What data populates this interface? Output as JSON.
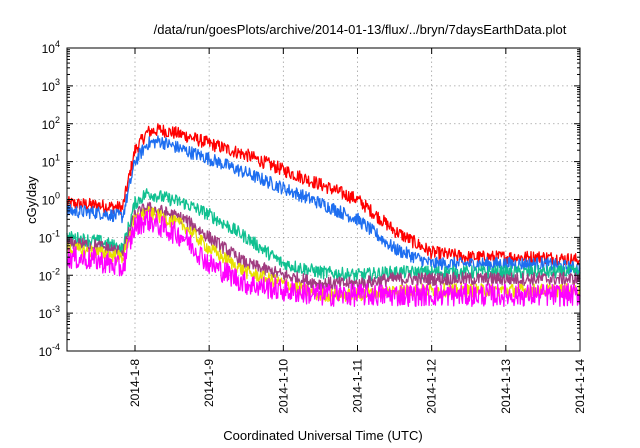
{
  "chart_data": {
    "type": "line",
    "title": "/data/run/goesPlots/archive/2014-01-13/flux/../bryn/7daysEarthData.plot",
    "xlabel": "Coordinated Universal Time (UTC)",
    "ylabel": "cGy/day",
    "yscale": "log",
    "ylim": [
      0.0001,
      10000
    ],
    "xlim": [
      "2014-01-07T02:00",
      "2014-01-14T00:00"
    ],
    "grid": true,
    "legend": "none",
    "x_ticks": [
      "2014-1-8",
      "2014-1-9",
      "2014-1-10",
      "2014-1-11",
      "2014-1-12",
      "2014-1-13",
      "2014-1-14"
    ],
    "y_ticks": [
      {
        "value": 0.0001,
        "base": "10",
        "exp": "-4"
      },
      {
        "value": 0.001,
        "base": "10",
        "exp": "-3"
      },
      {
        "value": 0.01,
        "base": "10",
        "exp": "-2"
      },
      {
        "value": 0.1,
        "base": "10",
        "exp": "-1"
      },
      {
        "value": 1,
        "base": "10",
        "exp": "0"
      },
      {
        "value": 10,
        "base": "10",
        "exp": "1"
      },
      {
        "value": 100,
        "base": "10",
        "exp": "2"
      },
      {
        "value": 1000,
        "base": "10",
        "exp": "3"
      },
      {
        "value": 10000,
        "base": "10",
        "exp": "4"
      }
    ],
    "series": [
      {
        "color": "#ff0000",
        "x": [
          "2014-01-07T02:00",
          "2014-01-07T12:00",
          "2014-01-07T20:00",
          "2014-01-07T21:00",
          "2014-01-08T00:00",
          "2014-01-08T04:00",
          "2014-01-08T08:00",
          "2014-01-08T16:00",
          "2014-01-09T00:00",
          "2014-01-09T12:00",
          "2014-01-10T00:00",
          "2014-01-10T12:00",
          "2014-01-11T00:00",
          "2014-01-11T12:00",
          "2014-01-12T00:00",
          "2014-01-12T12:00",
          "2014-01-13T00:00",
          "2014-01-13T12:00",
          "2014-01-14T00:00"
        ],
        "y": [
          0.8,
          0.7,
          0.6,
          1.5,
          20,
          60,
          70,
          50,
          30,
          15,
          6,
          2.5,
          1.0,
          0.15,
          0.04,
          0.03,
          0.03,
          0.03,
          0.025
        ]
      },
      {
        "color": "#1e6ef0",
        "x": [
          "2014-01-07T02:00",
          "2014-01-07T12:00",
          "2014-01-07T20:00",
          "2014-01-07T21:00",
          "2014-01-08T00:00",
          "2014-01-08T04:00",
          "2014-01-08T08:00",
          "2014-01-08T16:00",
          "2014-01-09T00:00",
          "2014-01-09T12:00",
          "2014-01-10T00:00",
          "2014-01-10T12:00",
          "2014-01-11T00:00",
          "2014-01-11T12:00",
          "2014-01-12T00:00",
          "2014-01-12T12:00",
          "2014-01-13T00:00",
          "2014-01-13T12:00",
          "2014-01-14T00:00"
        ],
        "y": [
          0.5,
          0.45,
          0.35,
          0.8,
          10,
          30,
          35,
          20,
          12,
          5,
          2,
          0.8,
          0.3,
          0.05,
          0.02,
          0.02,
          0.02,
          0.02,
          0.015
        ]
      },
      {
        "color": "#10c090",
        "x": [
          "2014-01-07T02:00",
          "2014-01-07T12:00",
          "2014-01-07T20:00",
          "2014-01-07T21:00",
          "2014-01-08T00:00",
          "2014-01-08T04:00",
          "2014-01-08T08:00",
          "2014-01-08T16:00",
          "2014-01-09T00:00",
          "2014-01-09T12:00",
          "2014-01-10T00:00",
          "2014-01-10T12:00",
          "2014-01-11T00:00",
          "2014-01-11T12:00",
          "2014-01-12T00:00",
          "2014-01-12T12:00",
          "2014-01-13T00:00",
          "2014-01-13T12:00",
          "2014-01-14T00:00"
        ],
        "y": [
          0.1,
          0.08,
          0.05,
          0.1,
          0.8,
          1.5,
          1.2,
          0.8,
          0.4,
          0.1,
          0.02,
          0.012,
          0.01,
          0.012,
          0.012,
          0.012,
          0.012,
          0.012,
          0.012
        ]
      },
      {
        "color": "#a03c80",
        "x": [
          "2014-01-07T02:00",
          "2014-01-07T12:00",
          "2014-01-07T20:00",
          "2014-01-07T21:00",
          "2014-01-08T00:00",
          "2014-01-08T04:00",
          "2014-01-08T08:00",
          "2014-01-08T16:00",
          "2014-01-09T00:00",
          "2014-01-09T12:00",
          "2014-01-10T00:00",
          "2014-01-10T12:00",
          "2014-01-11T00:00",
          "2014-01-11T12:00",
          "2014-01-12T00:00",
          "2014-01-12T12:00",
          "2014-01-13T00:00",
          "2014-01-13T12:00",
          "2014-01-14T00:00"
        ],
        "y": [
          0.07,
          0.06,
          0.04,
          0.07,
          0.4,
          0.6,
          0.5,
          0.3,
          0.1,
          0.02,
          0.01,
          0.006,
          0.006,
          0.008,
          0.008,
          0.008,
          0.008,
          0.008,
          0.008
        ]
      },
      {
        "color": "#e8e000",
        "x": [
          "2014-01-07T02:00",
          "2014-01-07T12:00",
          "2014-01-07T20:00",
          "2014-01-07T21:00",
          "2014-01-08T00:00",
          "2014-01-08T04:00",
          "2014-01-08T08:00",
          "2014-01-08T16:00",
          "2014-01-09T00:00",
          "2014-01-09T12:00",
          "2014-01-10T00:00",
          "2014-01-10T12:00",
          "2014-01-11T00:00",
          "2014-01-11T12:00",
          "2014-01-12T00:00",
          "2014-01-12T12:00",
          "2014-01-13T00:00",
          "2014-01-13T12:00",
          "2014-01-14T00:00"
        ],
        "y": [
          0.05,
          0.04,
          0.03,
          0.05,
          0.3,
          0.45,
          0.35,
          0.2,
          0.05,
          0.012,
          0.006,
          0.003,
          0.003,
          0.004,
          0.004,
          0.004,
          0.004,
          0.004,
          0.004
        ]
      },
      {
        "color": "#ff00ff",
        "x": [
          "2014-01-07T02:00",
          "2014-01-07T12:00",
          "2014-01-07T20:00",
          "2014-01-07T21:00",
          "2014-01-08T00:00",
          "2014-01-08T04:00",
          "2014-01-08T08:00",
          "2014-01-08T16:00",
          "2014-01-09T00:00",
          "2014-01-09T12:00",
          "2014-01-10T00:00",
          "2014-01-10T12:00",
          "2014-01-11T00:00",
          "2014-01-11T12:00",
          "2014-01-12T00:00",
          "2014-01-12T12:00",
          "2014-01-13T00:00",
          "2014-01-13T12:00",
          "2014-01-14T00:00"
        ],
        "y": [
          0.03,
          0.025,
          0.015,
          0.03,
          0.2,
          0.3,
          0.2,
          0.1,
          0.02,
          0.006,
          0.004,
          0.003,
          0.003,
          0.003,
          0.003,
          0.003,
          0.003,
          0.003,
          0.003
        ]
      }
    ]
  }
}
